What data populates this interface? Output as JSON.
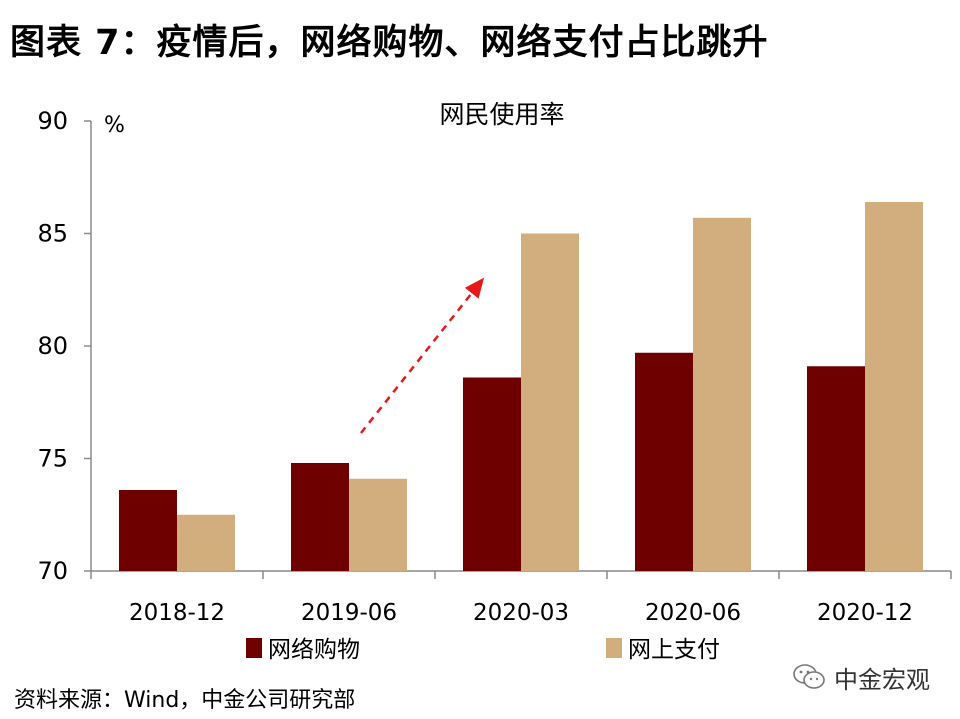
{
  "figure_title": "图表 7：疫情后，网络购物、网络支付占比跳升",
  "source_note": "资料来源：Wind，中金公司研究部",
  "watermark": "中金宏观",
  "colors": {
    "series1": "#6e0000",
    "series2": "#d2ae7e",
    "arrow": "#e8191b",
    "axis": "#8a8a8a"
  },
  "chart_data": {
    "type": "bar",
    "title": "网民使用率",
    "ylabel": "%",
    "xlabel": "",
    "categories": [
      "2018-12",
      "2019-06",
      "2020-03",
      "2020-06",
      "2020-12"
    ],
    "series": [
      {
        "name": "网络购物",
        "values": [
          73.6,
          74.8,
          78.6,
          79.7,
          79.1
        ]
      },
      {
        "name": "网上支付",
        "values": [
          72.5,
          74.1,
          85.0,
          85.7,
          86.4
        ]
      }
    ],
    "ylim": [
      70,
      90
    ],
    "yticks": [
      70,
      75,
      80,
      85,
      90
    ],
    "grid": false,
    "legend": "bottom",
    "annotation": "dashed red arrow from 2019-06 rising toward 2020-03"
  }
}
